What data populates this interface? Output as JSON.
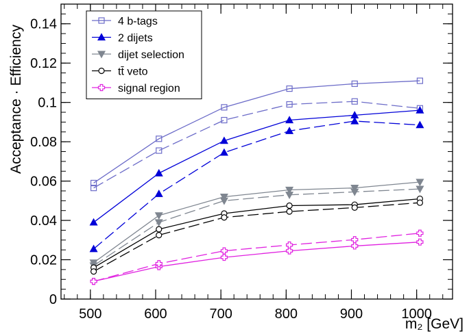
{
  "chart_data": {
    "type": "line",
    "xlabel": "m₂  [GeV]",
    "ylabel": "Acceptance · Efficiency",
    "xlim": [
      455,
      1055
    ],
    "ylim": [
      0,
      0.15
    ],
    "xticks": [
      500,
      600,
      700,
      800,
      900,
      1000
    ],
    "xtick_labels": [
      "500",
      "600",
      "700",
      "800",
      "900",
      "1000"
    ],
    "yticks": [
      0,
      0.02,
      0.04,
      0.06,
      0.08,
      0.1,
      0.12,
      0.14
    ],
    "ytick_labels": [
      "0",
      "0.02",
      "0.04",
      "0.06",
      "0.08",
      "0.1",
      "0.12",
      "0.14"
    ],
    "legend_position": "top-left",
    "grid": false,
    "x": [
      505,
      605,
      705,
      805,
      905,
      1005
    ],
    "series": [
      {
        "name": "4 b-tags",
        "color": "#6b6bc8",
        "marker": "open-square",
        "dash": "solid",
        "values": [
          0.059,
          0.0815,
          0.0975,
          0.107,
          0.1095,
          0.111
        ]
      },
      {
        "name": "",
        "color": "#6b6bc8",
        "marker": "open-square",
        "dash": "dashed",
        "values": [
          0.0565,
          0.0755,
          0.091,
          0.099,
          0.1005,
          0.097
        ]
      },
      {
        "name": "2 dijets",
        "color": "#0000d8",
        "marker": "filled-triangle-up",
        "dash": "solid",
        "values": [
          0.039,
          0.064,
          0.0805,
          0.091,
          0.0935,
          0.096
        ]
      },
      {
        "name": "",
        "color": "#0000d8",
        "marker": "filled-triangle-up",
        "dash": "dashed",
        "values": [
          0.0255,
          0.0535,
          0.0745,
          0.0855,
          0.0905,
          0.0885
        ]
      },
      {
        "name": "dijet selection",
        "color": "#7f8690",
        "marker": "filled-triangle-down",
        "dash": "solid",
        "values": [
          0.0185,
          0.0425,
          0.052,
          0.0555,
          0.0565,
          0.0595
        ]
      },
      {
        "name": "",
        "color": "#7f8690",
        "marker": "filled-triangle-down",
        "dash": "dashed",
        "values": [
          0.017,
          0.039,
          0.05,
          0.053,
          0.0545,
          0.056
        ]
      },
      {
        "name": "tt̄ veto",
        "color": "#000000",
        "marker": "open-circle",
        "dash": "solid",
        "values": [
          0.016,
          0.0355,
          0.0435,
          0.0475,
          0.048,
          0.051
        ]
      },
      {
        "name": "",
        "color": "#000000",
        "marker": "open-circle",
        "dash": "dashed",
        "values": [
          0.014,
          0.0325,
          0.0415,
          0.0445,
          0.0465,
          0.049
        ]
      },
      {
        "name": "signal region",
        "color": "#e020e0",
        "marker": "open-cross",
        "dash": "solid",
        "values": [
          0.009,
          0.0165,
          0.0212,
          0.0245,
          0.027,
          0.029
        ]
      },
      {
        "name": "",
        "color": "#e020e0",
        "marker": "open-cross",
        "dash": "dashed",
        "values": [
          0.009,
          0.018,
          0.0245,
          0.0275,
          0.0302,
          0.0335
        ]
      }
    ]
  }
}
